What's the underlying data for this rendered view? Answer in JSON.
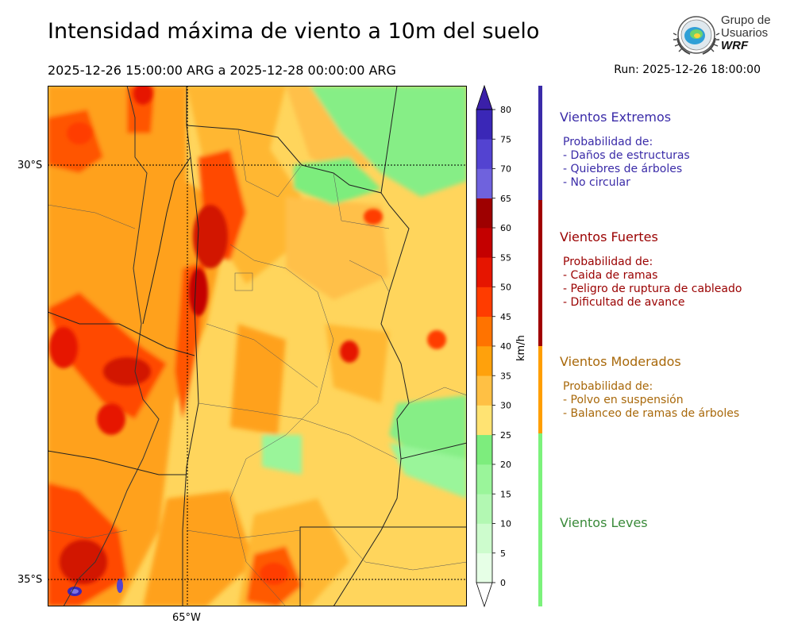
{
  "header": {
    "title": "Intensidad máxima de viento a 10m del suelo",
    "period": "2025-12-26 15:00:00 ARG  a  2025-12-28 00:00:00 ARG",
    "run": "Run: 2025-12-26 18:00:00"
  },
  "logo": {
    "line1": "Grupo de",
    "line2": "Usuarios",
    "line3": "WRF"
  },
  "map": {
    "lat_labels": [
      "30°S",
      "35°S"
    ],
    "lon_labels": [
      "65°W"
    ],
    "gridlines": "dotted"
  },
  "colorbar": {
    "unit": "km/h",
    "ticks": [
      "0",
      "5",
      "10",
      "15",
      "20",
      "25",
      "30",
      "35",
      "40",
      "45",
      "50",
      "55",
      "60",
      "65",
      "70",
      "75",
      "80"
    ],
    "levels": [
      0,
      5,
      10,
      15,
      20,
      25,
      30,
      35,
      40,
      45,
      50,
      55,
      60,
      65,
      70,
      75,
      80
    ],
    "colors": [
      "#e6ffe6",
      "#cdfccd",
      "#b2f8b2",
      "#9af59a",
      "#7ded7d",
      "#ffe372",
      "#ffc044",
      "#ffa10c",
      "#ff7300",
      "#ff3c00",
      "#e61500",
      "#c40000",
      "#9e0000",
      "#6f62dd",
      "#5343d1",
      "#3a27b7"
    ],
    "extend": "both"
  },
  "categories": [
    {
      "key": "extremos",
      "color": "#3a2ba8",
      "title": "Vientos Extremos",
      "lines": [
        "Probabilidad de:",
        "- Daños de estructuras",
        "- Quiebres de árboles",
        "- No circular"
      ]
    },
    {
      "key": "fuertes",
      "color": "#9a0000",
      "title": "Vientos Fuertes",
      "lines": [
        "Probabilidad de:",
        "- Caida de ramas",
        "- Peligro de ruptura de cableado",
        "- Dificultad de avance"
      ]
    },
    {
      "key": "moderados",
      "color": "#a8680a",
      "title": "Vientos Moderados",
      "lines": [
        "Probabilidad de:",
        "- Polvo en suspensión",
        "- Balanceo de ramas de árboles"
      ]
    },
    {
      "key": "leves",
      "color": "#3a8a3a",
      "title": "Vientos Leves",
      "lines": []
    }
  ],
  "category_bar_colors": {
    "extremos": "#3a2ba8",
    "fuertes": "#a00000",
    "moderados": "#ff9e00",
    "leves": "#7cf27c"
  }
}
